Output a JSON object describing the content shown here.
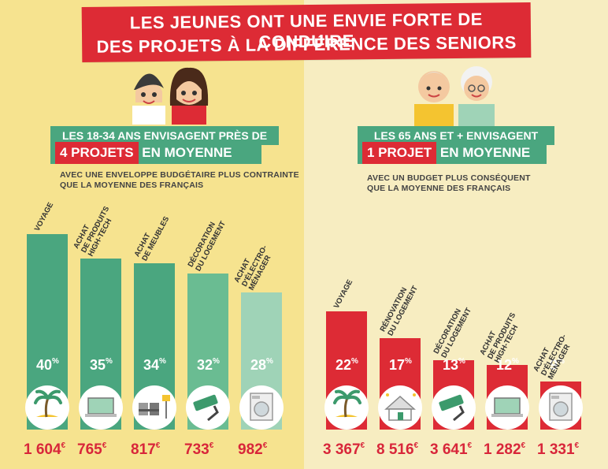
{
  "title": {
    "line1": "LES JEUNES ONT UNE ENVIE FORTE DE CONDUIRE",
    "line2": "DES PROJETS À LA DIFFÉRENCE DES SENIORS"
  },
  "left": {
    "head1": "LES 18-34 ANS ENVISAGENT PRÈS DE",
    "head_highlight": "4 PROJETS",
    "head_rest": " EN MOYENNE",
    "caption1": "AVEC UNE ENVELOPPE BUDGÉTAIRE PLUS CONTRAINTE",
    "caption2": "QUE LA MOYENNE DES FRANÇAIS"
  },
  "right": {
    "head1": "LES 65 ANS ET + ENVISAGENT",
    "head_highlight": "1 PROJET",
    "head_rest": " EN MOYENNE",
    "caption1": "AVEC UN BUDGET PLUS CONSÉQUENT",
    "caption2": "QUE LA MOYENNE DES FRANÇAIS"
  },
  "colors": {
    "red": "#dd2b35",
    "green_dark": "#4aa67f",
    "green_light": "#9fd3b7",
    "amount_red": "#d8263a"
  },
  "chart_data": [
    {
      "type": "bar",
      "categories": [
        "VOYAGE",
        "ACHAT\nDE PRODUITS\nHIGH-TECH",
        "ACHAT\nDE MEUBLES",
        "DÉCORATION\nDU LOGEMENT",
        "ACHAT\nD'ÉLECTRO-\nMÉNAGER"
      ],
      "values": [
        40,
        35,
        34,
        32,
        28
      ],
      "value_suffix": "%",
      "amounts": [
        "1 604",
        "765",
        "817",
        "733",
        "982"
      ],
      "amount_unit": "€",
      "icons": [
        "palm-tree-icon",
        "laptop-icon",
        "chairs-lamp-icon",
        "paint-roller-icon",
        "washing-machine-icon"
      ]
    },
    {
      "type": "bar",
      "categories": [
        "VOYAGE",
        "RÉNOVATION\nDU LOGEMENT",
        "DÉCORATION\nDU LOGEMENT",
        "ACHAT\nDE PRODUITS\nHIGH-TECH",
        "ACHAT\nD'ÉLECTRO-\nMÉNAGER"
      ],
      "values": [
        22,
        17,
        13,
        12,
        9
      ],
      "value_suffix": "%",
      "amounts": [
        "3 367",
        "8 516",
        "3 641",
        "1 282",
        "1 331"
      ],
      "amount_unit": "€",
      "icons": [
        "palm-tree-icon",
        "house-icon",
        "paint-roller-icon",
        "laptop-icon",
        "washing-machine-icon"
      ]
    }
  ]
}
